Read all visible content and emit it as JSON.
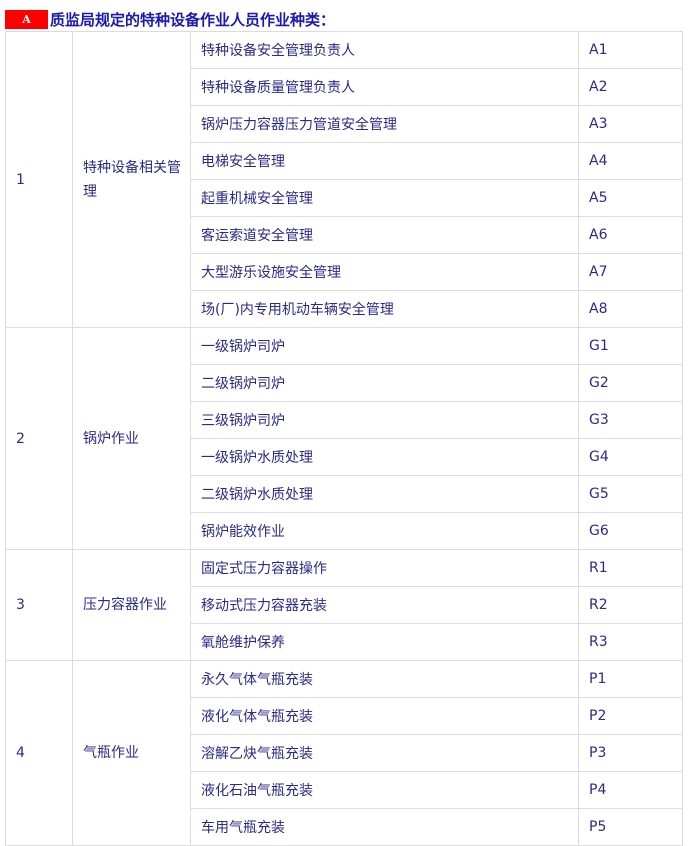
{
  "title": {
    "badge": "A",
    "text": "质监局规定的特种设备作业人员作业种类："
  },
  "groups": [
    {
      "no": "1",
      "category": "特种设备相关管理",
      "items": [
        {
          "name": "特种设备安全管理负责人",
          "code": "A1"
        },
        {
          "name": "特种设备质量管理负责人",
          "code": "A2"
        },
        {
          "name": "锅炉压力容器压力管道安全管理",
          "code": "A3"
        },
        {
          "name": "电梯安全管理",
          "code": "A4"
        },
        {
          "name": "起重机械安全管理",
          "code": "A5"
        },
        {
          "name": "客运索道安全管理",
          "code": "A6"
        },
        {
          "name": "大型游乐设施安全管理",
          "code": "A7"
        },
        {
          "name": "场(厂)内专用机动车辆安全管理",
          "code": "A8"
        }
      ]
    },
    {
      "no": "2",
      "category": "锅炉作业",
      "items": [
        {
          "name": "一级锅炉司炉",
          "code": "G1"
        },
        {
          "name": "二级锅炉司炉",
          "code": "G2"
        },
        {
          "name": "三级锅炉司炉",
          "code": "G3"
        },
        {
          "name": "一级锅炉水质处理",
          "code": "G4"
        },
        {
          "name": "二级锅炉水质处理",
          "code": "G5"
        },
        {
          "name": "锅炉能效作业",
          "code": "G6"
        }
      ]
    },
    {
      "no": "3",
      "category": "压力容器作业",
      "items": [
        {
          "name": "固定式压力容器操作",
          "code": "R1"
        },
        {
          "name": "移动式压力容器充装",
          "code": "R2"
        },
        {
          "name": "氧舱维护保养",
          "code": "R3"
        }
      ]
    },
    {
      "no": "4",
      "category": "气瓶作业",
      "items": [
        {
          "name": "永久气体气瓶充装",
          "code": "P1"
        },
        {
          "name": "液化气体气瓶充装",
          "code": "P2"
        },
        {
          "name": "溶解乙炔气瓶充装",
          "code": "P3"
        },
        {
          "name": "液化石油气瓶充装",
          "code": "P4"
        },
        {
          "name": "车用气瓶充装",
          "code": "P5"
        }
      ]
    }
  ]
}
